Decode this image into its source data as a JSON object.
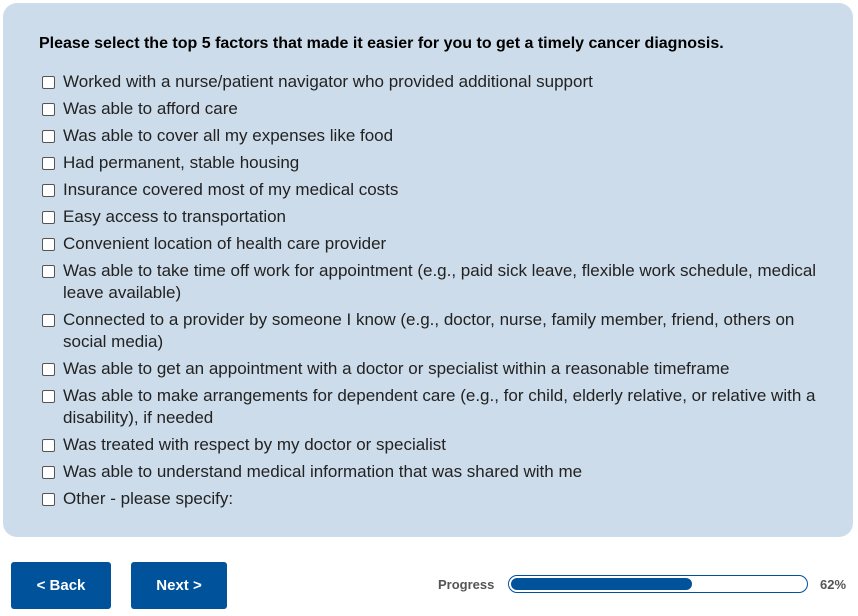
{
  "question": "Please select the top 5 factors that made it easier for you to get a timely cancer diagnosis.",
  "options": [
    "Worked with a nurse/patient navigator who provided additional support",
    "Was able to afford care",
    "Was able to cover all my expenses like food",
    "Had permanent, stable housing",
    "Insurance covered most of my medical costs",
    "Easy access to transportation",
    "Convenient location of health care provider",
    "Was able to take time off work for appointment (e.g., paid sick leave, flexible work schedule, medical leave available)",
    "Connected to a provider by someone I know (e.g., doctor, nurse, family member, friend, others on social media)",
    "Was able to get an appointment with a doctor or specialist within a reasonable timeframe",
    "Was able to make arrangements for dependent care (e.g., for child, elderly relative, or relative with a disability), if needed",
    "Was treated with respect by my doctor or specialist",
    "Was able to understand medical information that was shared with me",
    "Other - please specify:"
  ],
  "nav": {
    "back_label": "< Back",
    "next_label": "Next >"
  },
  "progress": {
    "label": "Progress",
    "value": 62,
    "text": "62%"
  },
  "colors": {
    "panel": "#cddcea",
    "accent": "#00529b"
  }
}
